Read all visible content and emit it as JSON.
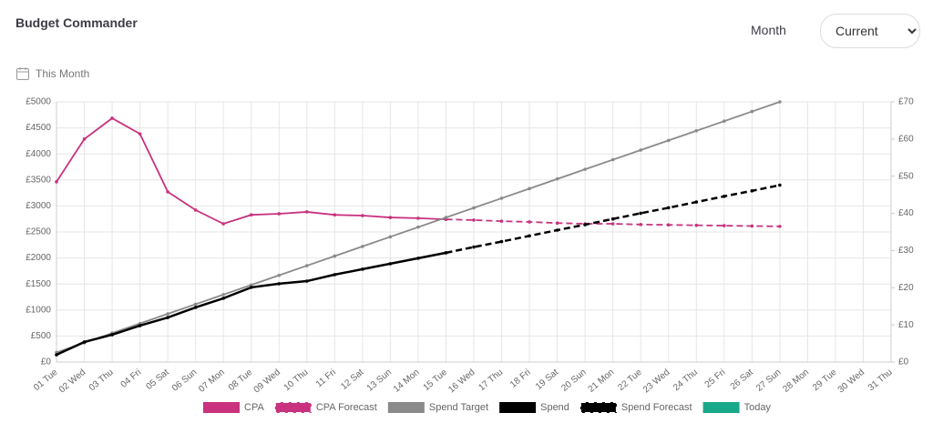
{
  "header": {
    "title": "Budget Commander",
    "period": "This Month",
    "month_label": "Month",
    "month_value": "Current"
  },
  "chart_data": {
    "type": "line",
    "categories": [
      "01 Tue",
      "02 Wed",
      "03 Thu",
      "04 Fri",
      "05 Sat",
      "06 Sun",
      "07 Mon",
      "08 Tue",
      "09 Wed",
      "10 Thu",
      "11 Fri",
      "12 Sat",
      "13 Sun",
      "14 Mon",
      "15 Tue",
      "16 Wed",
      "17 Thu",
      "18 Fri",
      "19 Sat",
      "20 Sun",
      "21 Mon",
      "22 Tue",
      "23 Wed",
      "24 Thu",
      "25 Fri",
      "26 Sat",
      "27 Sun",
      "28 Mon",
      "29 Tue",
      "30 Wed",
      "31 Thu"
    ],
    "ylim": [
      0,
      5000
    ],
    "yticks": [
      {
        "value": 0,
        "label": "£0"
      },
      {
        "value": 500,
        "label": "£500"
      },
      {
        "value": 1000,
        "label": "£1000"
      },
      {
        "value": 1500,
        "label": "£1500"
      },
      {
        "value": 2000,
        "label": "£2000"
      },
      {
        "value": 2500,
        "label": "£2500"
      },
      {
        "value": 3000,
        "label": "£3000"
      },
      {
        "value": 3500,
        "label": "£3500"
      },
      {
        "value": 4000,
        "label": "£4000"
      },
      {
        "value": 4500,
        "label": "£4500"
      },
      {
        "value": 5000,
        "label": "£5000"
      }
    ],
    "y2lim": [
      0,
      70
    ],
    "y2ticks": [
      {
        "value": 0,
        "label": "£0"
      },
      {
        "value": 10,
        "label": "£10"
      },
      {
        "value": 20,
        "label": "£20"
      },
      {
        "value": 30,
        "label": "£30"
      },
      {
        "value": 40,
        "label": "£40"
      },
      {
        "value": 50,
        "label": "£50"
      },
      {
        "value": 60,
        "label": "£60"
      },
      {
        "value": 70,
        "label": "£70"
      }
    ],
    "grid": true,
    "series": [
      {
        "name": "CPA",
        "color": "#c8327e",
        "axis": "y2",
        "dashed": false,
        "values": [
          48.5,
          60,
          65.6,
          61.4,
          45.8,
          40.9,
          37.2,
          39.6,
          39.9,
          40.4,
          39.6,
          39.4,
          38.9,
          38.7,
          38.4,
          null,
          null,
          null,
          null,
          null,
          null,
          null,
          null,
          null,
          null,
          null,
          null,
          null,
          null,
          null,
          null
        ]
      },
      {
        "name": "CPA Forecast",
        "color": "#c8327e",
        "axis": "y2",
        "dashed": true,
        "values": [
          null,
          null,
          null,
          null,
          null,
          null,
          null,
          null,
          null,
          null,
          null,
          null,
          null,
          null,
          38.4,
          38.2,
          37.9,
          37.7,
          37.4,
          37.2,
          37.2,
          37.0,
          36.9,
          36.8,
          36.7,
          36.6,
          36.5,
          null,
          null,
          null,
          null
        ]
      },
      {
        "name": "Spend Target",
        "color": "#8a8a8a",
        "dashed": false,
        "values": [
          185,
          370,
          556,
          741,
          926,
          1111,
          1296,
          1481,
          1667,
          1852,
          2037,
          2222,
          2407,
          2593,
          2778,
          2963,
          3148,
          3333,
          3519,
          3704,
          3889,
          4074,
          4259,
          4444,
          4630,
          4815,
          5000,
          null,
          null,
          null,
          null
        ]
      },
      {
        "name": "Spend",
        "color": "#000000",
        "dashed": false,
        "values": [
          140,
          385,
          525,
          700,
          855,
          1050,
          1225,
          1435,
          1505,
          1555,
          1680,
          1785,
          1890,
          1995,
          2100,
          null,
          null,
          null,
          null,
          null,
          null,
          null,
          null,
          null,
          null,
          null,
          null,
          null,
          null,
          null,
          null
        ]
      },
      {
        "name": "Spend Forecast",
        "color": "#000000",
        "dashed": true,
        "values": [
          null,
          null,
          null,
          null,
          null,
          null,
          null,
          null,
          null,
          null,
          null,
          null,
          null,
          null,
          2100,
          2210,
          2315,
          2425,
          2535,
          2640,
          2750,
          2860,
          2965,
          3075,
          3185,
          3290,
          3400,
          null,
          null,
          null,
          null
        ]
      },
      {
        "name": "Today",
        "color": "#1aa88a",
        "dashed": false,
        "values": [
          null,
          null,
          null,
          null,
          null,
          null,
          null,
          null,
          null,
          null,
          null,
          null,
          null,
          null,
          null,
          null,
          null,
          null,
          null,
          null,
          null,
          null,
          null,
          null,
          null,
          null,
          null,
          null,
          null,
          null,
          null
        ]
      }
    ]
  }
}
